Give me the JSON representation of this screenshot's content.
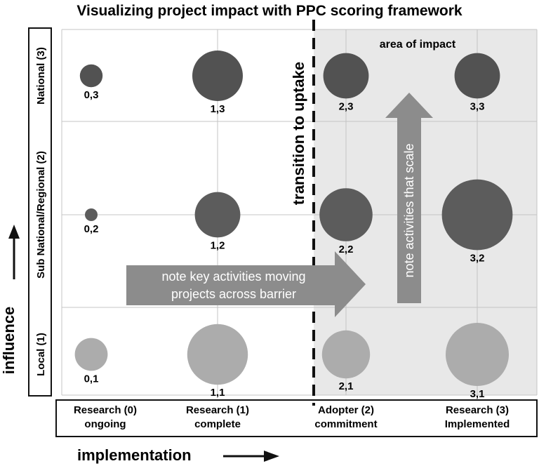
{
  "chart_data": {
    "type": "scatter",
    "title": "Visualizing project impact with PPC scoring framework",
    "xlabel": "implementation",
    "ylabel": "influence",
    "x_categories": [
      "Research (0)\nongoing",
      "Research (1)\ncomplete",
      "Adopter (2)\ncommitment",
      "Research (3)\nImplemented"
    ],
    "y_categories": [
      "Local (1)",
      "Sub National/Regional (2)",
      "National (3)"
    ],
    "points": [
      {
        "x": 0,
        "y": 3,
        "label": "0,3",
        "size": 0.45
      },
      {
        "x": 1,
        "y": 3,
        "label": "1,3",
        "size": 1.0
      },
      {
        "x": 2,
        "y": 3,
        "label": "2,3",
        "size": 0.9
      },
      {
        "x": 3,
        "y": 3,
        "label": "3,3",
        "size": 0.9
      },
      {
        "x": 0,
        "y": 2,
        "label": "0,2",
        "size": 0.25
      },
      {
        "x": 1,
        "y": 2,
        "label": "1,2",
        "size": 0.9
      },
      {
        "x": 2,
        "y": 2,
        "label": "2,2",
        "size": 1.05
      },
      {
        "x": 3,
        "y": 2,
        "label": "3,2",
        "size": 1.4
      },
      {
        "x": 0,
        "y": 1,
        "label": "0,1",
        "size": 0.65
      },
      {
        "x": 1,
        "y": 1,
        "label": "1,1",
        "size": 1.2
      },
      {
        "x": 2,
        "y": 1,
        "label": "2,1",
        "size": 0.95
      },
      {
        "x": 3,
        "y": 1,
        "label": "3,1",
        "size": 1.25
      }
    ],
    "colors": {
      "row3": "#525252",
      "row2": "#5c5c5c",
      "row1": "#acacac"
    },
    "annotations": {
      "barrier": "transition to uptake",
      "area": "area of impact",
      "arrow_right": [
        "note key activities moving",
        "projects across barrier"
      ],
      "arrow_up": "note activities that scale"
    },
    "grid": true
  }
}
